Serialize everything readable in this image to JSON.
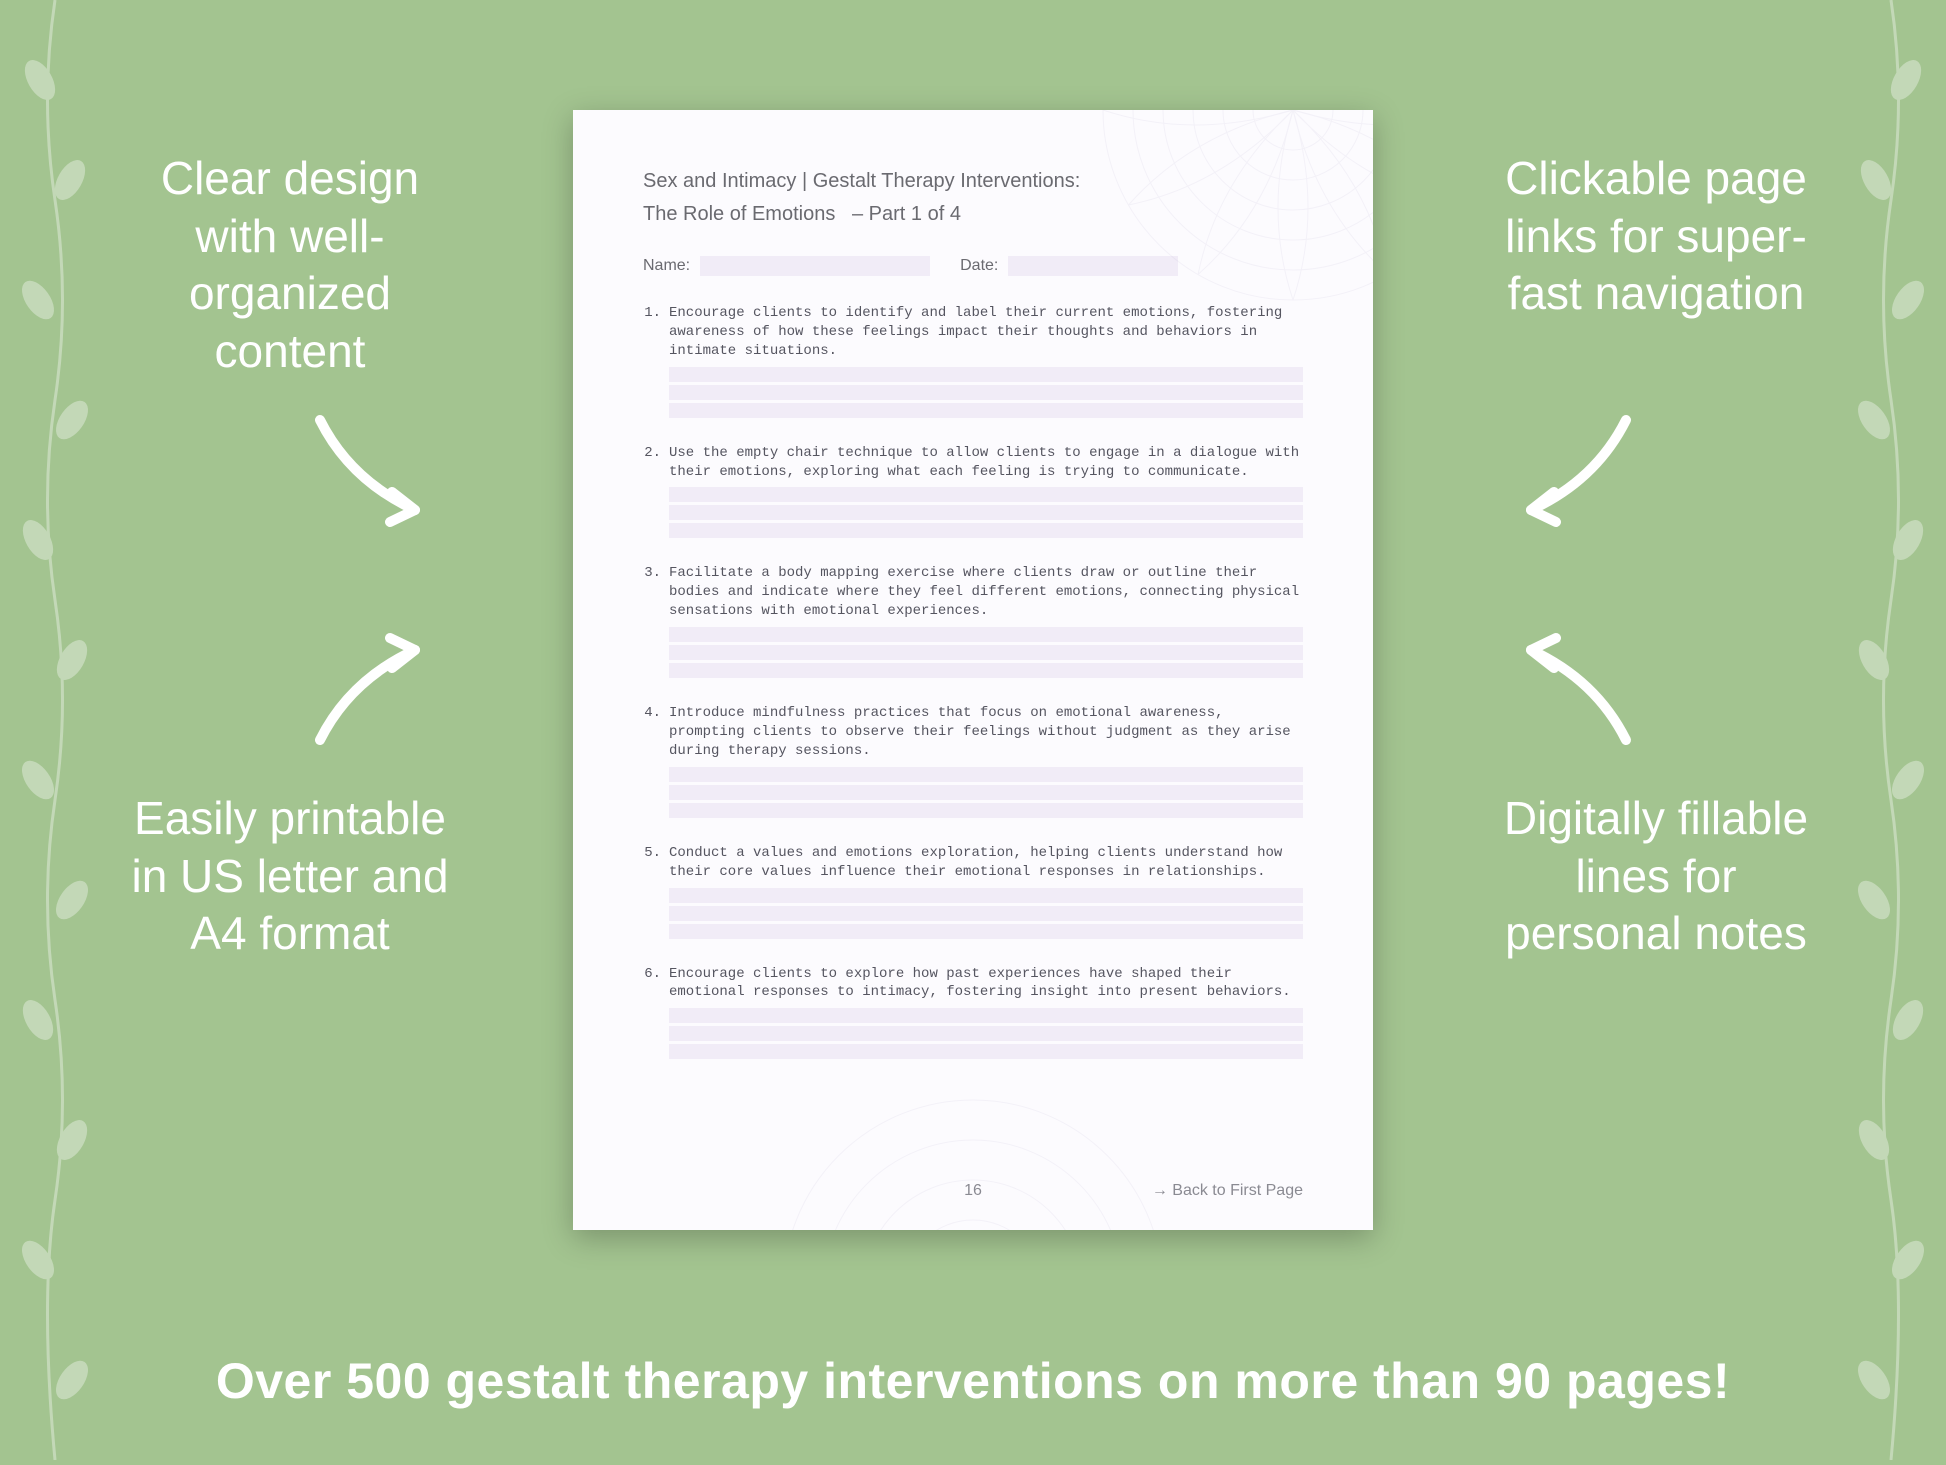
{
  "background_color": "#a3c490",
  "callouts": {
    "top_left": "Clear design with well-organized content",
    "top_right": "Clickable page links for super-fast navigation",
    "bottom_left": "Easily printable in US letter and A4 format",
    "bottom_right": "Digitally fillable lines for personal notes"
  },
  "banner": "Over 500 gestalt therapy interventions on more than 90 pages!",
  "document": {
    "category": "Sex and Intimacy | Gestalt Therapy Interventions:",
    "title": "The Role of Emotions",
    "part": "– Part 1 of 4",
    "name_label": "Name:",
    "date_label": "Date:",
    "page_number": "16",
    "back_link": "→ Back to First Page",
    "fill_line_color": "#f1ecf7",
    "text_color": "#555560",
    "header_color": "#6a6a70",
    "items": [
      {
        "n": "1.",
        "text": "Encourage clients to identify and label their current emotions, fostering awareness of how these feelings impact their thoughts and behaviors in intimate situations."
      },
      {
        "n": "2.",
        "text": "Use the empty chair technique to allow clients to engage in a dialogue with their emotions, exploring what each feeling is trying to communicate."
      },
      {
        "n": "3.",
        "text": "Facilitate a body mapping exercise where clients draw or outline their bodies and indicate where they feel different emotions, connecting physical sensations with emotional experiences."
      },
      {
        "n": "4.",
        "text": "Introduce mindfulness practices that focus on emotional awareness, prompting clients to observe their feelings without judgment as they arise during therapy sessions."
      },
      {
        "n": "5.",
        "text": "Conduct a values and emotions exploration, helping clients understand how their core values influence their emotional responses in relationships."
      },
      {
        "n": "6.",
        "text": "Encourage clients to explore how past experiences have shaped their emotional responses to intimacy, fostering insight into present behaviors."
      }
    ]
  },
  "styling": {
    "callout_color": "#ffffff",
    "callout_fontsize": 46,
    "banner_color": "#ffffff",
    "banner_fontsize": 50,
    "arrow_stroke": "#ffffff",
    "arrow_stroke_width": 10,
    "page_bg": "#fcfbfe",
    "page_shadow": "rgba(0,0,0,0.25)"
  }
}
